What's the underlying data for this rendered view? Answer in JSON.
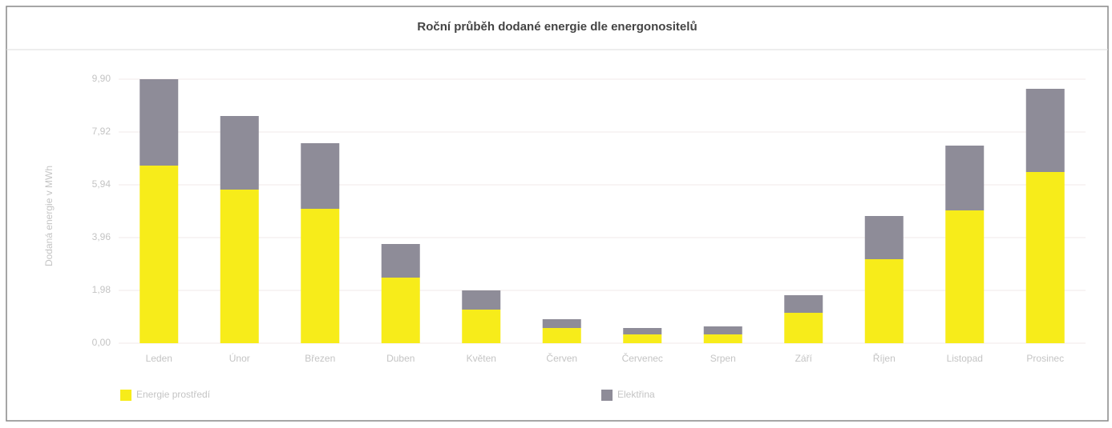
{
  "chart_data": {
    "type": "stacked_bar",
    "title": "Roční průběh dodané energie dle energonositelů",
    "y_label": "Dodaná energie v MWh",
    "categories": [
      "Leden",
      "Únor",
      "Březen",
      "Duben",
      "Květen",
      "Červen",
      "Červenec",
      "Srpen",
      "Září",
      "Říjen",
      "Listopad",
      "Prosinec"
    ],
    "series": [
      {
        "name": "Energie prostředí",
        "color": "#f7ec1a",
        "values": [
          6.66,
          5.76,
          5.04,
          2.46,
          1.26,
          0.57,
          0.33,
          0.33,
          1.14,
          3.15,
          4.98,
          6.42
        ]
      },
      {
        "name": "Elektřina",
        "color": "#8e8c98",
        "values": [
          3.24,
          2.76,
          2.46,
          1.26,
          0.72,
          0.33,
          0.24,
          0.3,
          0.66,
          1.62,
          2.43,
          3.12
        ]
      }
    ],
    "ylim": [
      0,
      9.9
    ],
    "yticks": [
      {
        "value": 0,
        "label": "0,00"
      },
      {
        "value": 1.98,
        "label": "1,98"
      },
      {
        "value": 3.96,
        "label": "3,96"
      },
      {
        "value": 5.94,
        "label": "5,94"
      },
      {
        "value": 7.92,
        "label": "7,92"
      },
      {
        "value": 9.9,
        "label": "9,90"
      }
    ],
    "grid": true,
    "legend": "bottom"
  }
}
